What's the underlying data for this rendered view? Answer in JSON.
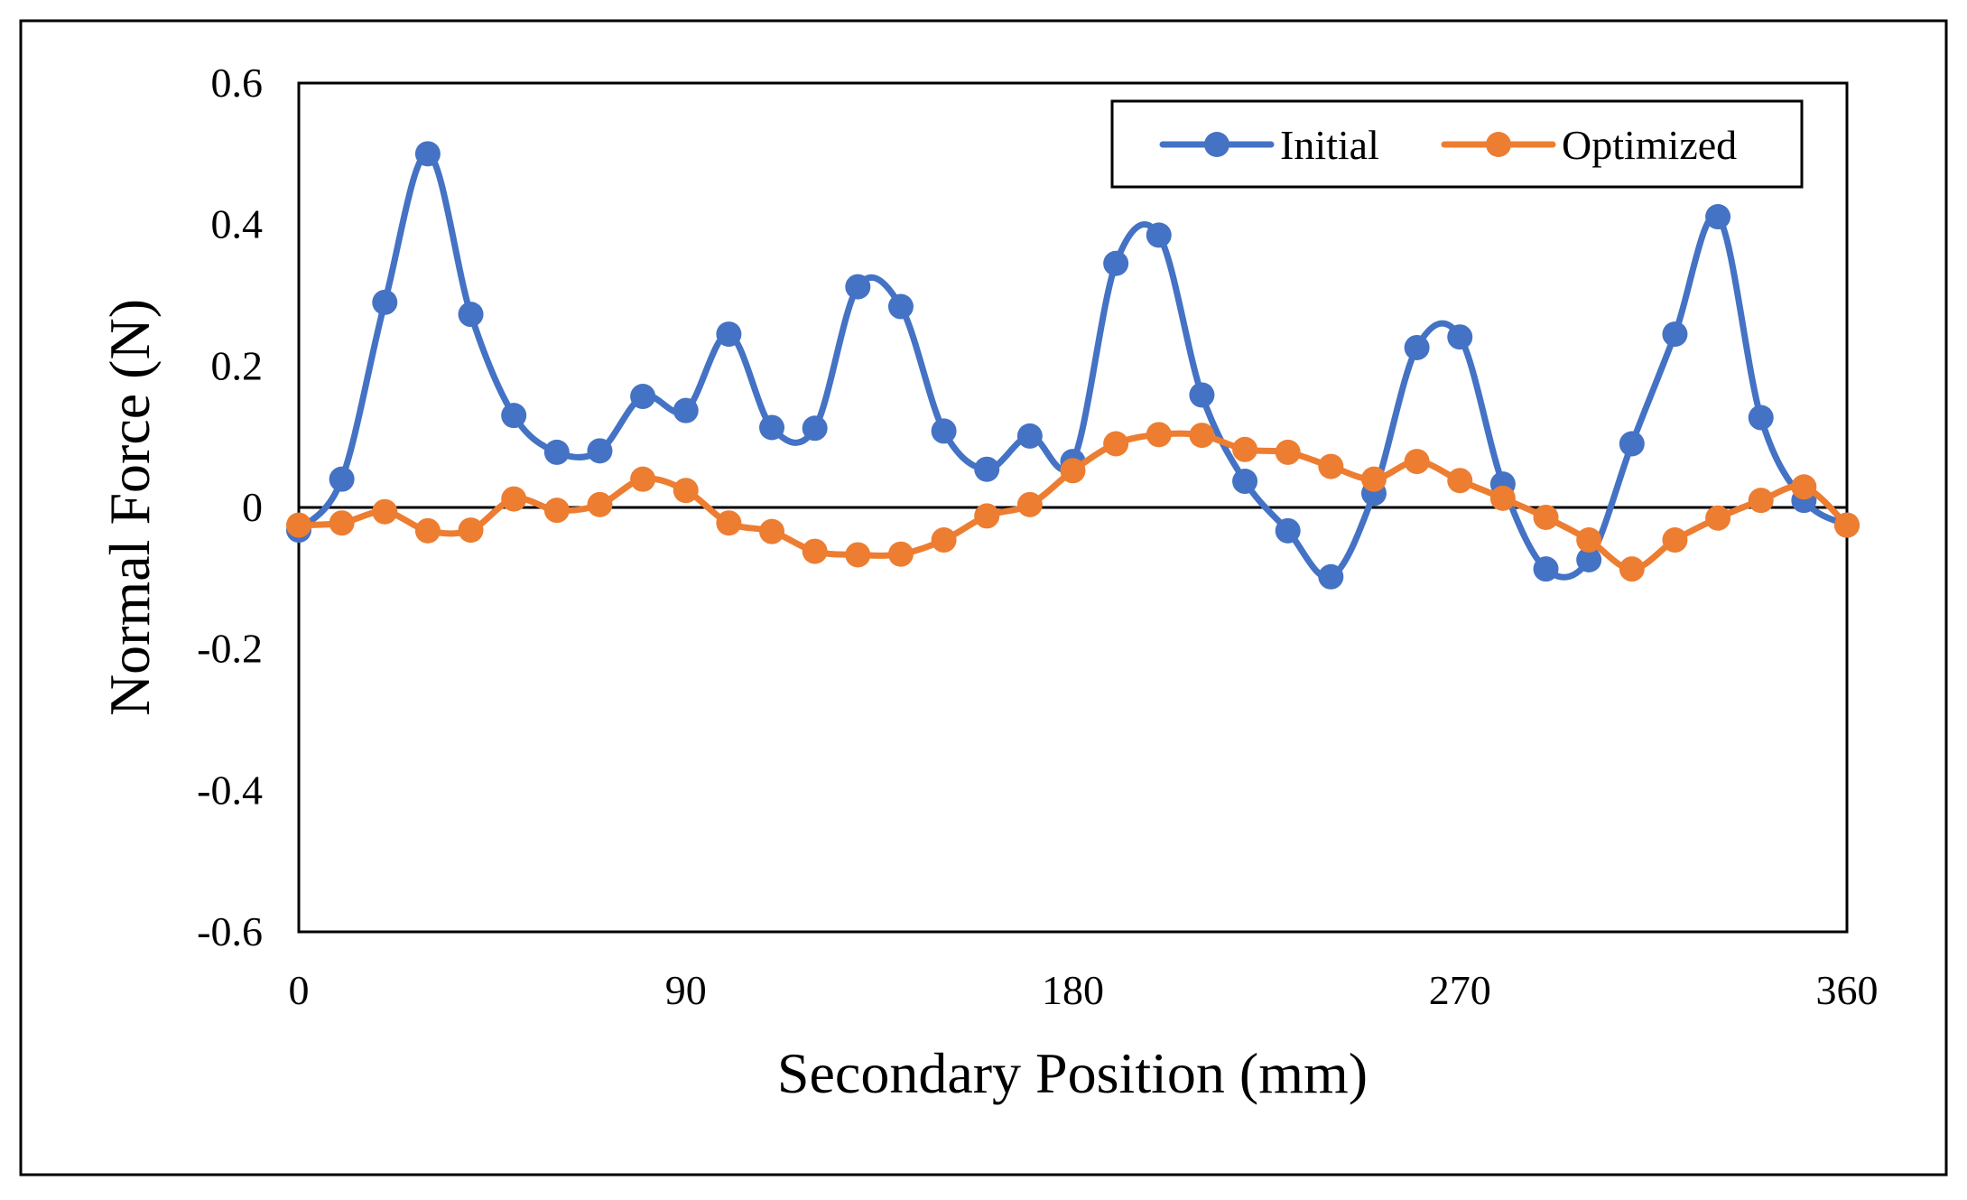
{
  "chart_data": {
    "type": "line",
    "title": "",
    "xlabel": "Secondary Position (mm)",
    "ylabel": "Normal Force (N)",
    "xlim": [
      0,
      360
    ],
    "ylim": [
      -0.6,
      0.6
    ],
    "x_ticks": [
      0,
      90,
      180,
      270,
      360
    ],
    "x_tick_labels": [
      "0",
      "90",
      "180",
      "270",
      "360"
    ],
    "y_ticks": [
      0.6,
      0.4,
      0.2,
      0,
      -0.2,
      -0.4,
      -0.6
    ],
    "y_tick_labels": [
      "0.6",
      "0.4",
      "0.2",
      "0",
      "-0.2",
      "-0.4",
      "-0.6"
    ],
    "grid": false,
    "smooth": true,
    "legend_position": "top-right",
    "x": [
      0,
      10,
      20,
      30,
      40,
      50,
      60,
      70,
      80,
      90,
      100,
      110,
      120,
      130,
      140,
      150,
      160,
      170,
      180,
      190,
      200,
      210,
      220,
      230,
      240,
      250,
      260,
      270,
      280,
      290,
      300,
      310,
      320,
      330,
      340,
      350,
      360
    ],
    "series": [
      {
        "name": "Initial",
        "color": "#4472C4",
        "values": [
          -0.032,
          0.04,
          0.29,
          0.5,
          0.273,
          0.13,
          0.078,
          0.08,
          0.157,
          0.137,
          0.245,
          0.113,
          0.112,
          0.312,
          0.284,
          0.108,
          0.054,
          0.101,
          0.065,
          0.345,
          0.385,
          0.159,
          0.037,
          -0.033,
          -0.098,
          0.02,
          0.226,
          0.241,
          0.033,
          -0.087,
          -0.074,
          0.09,
          0.245,
          0.411,
          0.127,
          0.01,
          -0.025
        ]
      },
      {
        "name": "Optimized",
        "color": "#ED7D31",
        "values": [
          -0.025,
          -0.022,
          -0.006,
          -0.033,
          -0.032,
          0.012,
          -0.004,
          0.004,
          0.04,
          0.024,
          -0.022,
          -0.034,
          -0.062,
          -0.067,
          -0.066,
          -0.046,
          -0.012,
          0.004,
          0.052,
          0.09,
          0.103,
          0.102,
          0.082,
          0.078,
          0.058,
          0.04,
          0.065,
          0.038,
          0.013,
          -0.014,
          -0.046,
          -0.087,
          -0.046,
          -0.015,
          0.01,
          0.029,
          -0.025
        ]
      }
    ]
  }
}
